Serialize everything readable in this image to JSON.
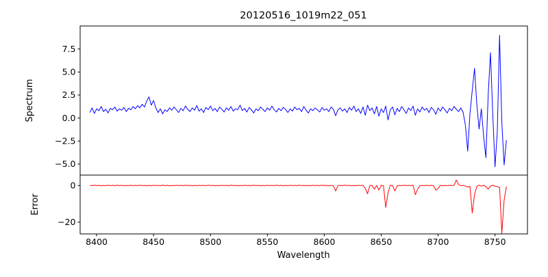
{
  "figure": {
    "title": "20120516_1019m22_051",
    "xlabel": "Wavelength",
    "background": "#ffffff",
    "axis_color": "#000000"
  },
  "chart_data": [
    {
      "type": "line",
      "series_name": "spectrum",
      "title": "20120516_1019m22_051",
      "ylabel": "Spectrum",
      "color": "#0000ff",
      "grid": false,
      "legend": "none",
      "x_start": 8394,
      "x_step": 2,
      "xlim": [
        8385.5,
        8778.5
      ],
      "ylim": [
        -6.2,
        10.0
      ],
      "yticks": [
        {
          "value": 7.5,
          "label": "7.5"
        },
        {
          "value": 5.0,
          "label": "5.0"
        },
        {
          "value": 2.5,
          "label": "2.5"
        },
        {
          "value": 0.0,
          "label": "0.0"
        },
        {
          "value": -2.5,
          "label": "−2.5"
        },
        {
          "value": -5.0,
          "label": "−5.0"
        }
      ],
      "values": [
        0.6,
        1.1,
        0.5,
        1.0,
        0.8,
        1.25,
        0.7,
        0.95,
        0.55,
        1.05,
        0.9,
        1.2,
        0.75,
        1.0,
        0.85,
        1.15,
        0.7,
        1.05,
        0.9,
        1.25,
        1.0,
        1.35,
        1.1,
        1.5,
        1.2,
        1.85,
        2.3,
        1.4,
        1.9,
        1.1,
        0.6,
        1.0,
        0.45,
        0.9,
        0.7,
        1.1,
        0.85,
        1.2,
        0.9,
        0.6,
        1.05,
        0.8,
        1.3,
        0.95,
        0.7,
        1.1,
        0.85,
        1.35,
        0.75,
        1.0,
        0.6,
        1.15,
        0.9,
        1.3,
        0.8,
        1.05,
        0.7,
        1.2,
        0.95,
        0.65,
        1.1,
        0.85,
        1.25,
        0.75,
        1.0,
        0.9,
        1.4,
        0.8,
        1.05,
        0.65,
        1.15,
        0.9,
        0.55,
        1.0,
        0.8,
        1.2,
        0.95,
        0.7,
        1.1,
        0.85,
        1.3,
        0.9,
        0.65,
        1.05,
        0.8,
        1.15,
        0.95,
        0.6,
        1.0,
        0.75,
        1.2,
        0.9,
        1.05,
        0.7,
        1.25,
        0.85,
        0.55,
        1.0,
        0.8,
        1.1,
        0.9,
        0.65,
        1.15,
        0.85,
        1.0,
        0.7,
        1.2,
        0.95,
        0.25,
        0.9,
        1.1,
        0.75,
        1.0,
        0.6,
        1.15,
        0.85,
        1.3,
        0.7,
        1.0,
        0.5,
        1.2,
        0.3,
        1.4,
        0.8,
        1.1,
        0.45,
        1.25,
        0.2,
        1.0,
        0.6,
        1.3,
        -0.2,
        0.9,
        1.2,
        0.35,
        1.05,
        0.7,
        1.25,
        0.9,
        0.5,
        1.1,
        0.8,
        1.3,
        0.3,
        1.0,
        0.65,
        1.2,
        0.85,
        1.05,
        0.6,
        1.15,
        0.9,
        0.4,
        1.1,
        0.75,
        1.2,
        0.9,
        0.55,
        1.05,
        0.8,
        1.25,
        0.95,
        0.7,
        1.1,
        0.6,
        -0.8,
        -3.6,
        0.5,
        3.0,
        5.4,
        1.5,
        -1.2,
        1.0,
        -2.0,
        -4.3,
        2.5,
        7.1,
        0.5,
        -5.3,
        -1.5,
        9.0,
        -0.5,
        -5.1,
        -2.4
      ]
    },
    {
      "type": "line",
      "series_name": "error",
      "ylabel": "Error",
      "xlabel": "Wavelength",
      "color": "#ff0000",
      "grid": false,
      "legend": "none",
      "x_start": 8394,
      "x_step": 2,
      "xlim": [
        8385.5,
        8778.5
      ],
      "ylim": [
        -26.4,
        5.7
      ],
      "xticks": [
        {
          "value": 8400,
          "label": "8400"
        },
        {
          "value": 8450,
          "label": "8450"
        },
        {
          "value": 8500,
          "label": "8500"
        },
        {
          "value": 8550,
          "label": "8550"
        },
        {
          "value": 8600,
          "label": "8600"
        },
        {
          "value": 8650,
          "label": "8650"
        },
        {
          "value": 8700,
          "label": "8700"
        },
        {
          "value": 8750,
          "label": "8750"
        }
      ],
      "yticks": [
        {
          "value": 0,
          "label": "0"
        },
        {
          "value": -20,
          "label": "−20"
        }
      ],
      "values": [
        0.1,
        -0.1,
        0.2,
        -0.05,
        0.1,
        -0.15,
        0.05,
        -0.1,
        0.15,
        -0.05,
        0.1,
        -0.1,
        0.2,
        -0.05,
        0.1,
        -0.15,
        0.05,
        -0.1,
        0.15,
        -0.05,
        0.1,
        -0.1,
        0.2,
        -0.05,
        0.1,
        -0.15,
        0.05,
        -0.1,
        0.15,
        -0.05,
        0.1,
        -0.1,
        0.2,
        -0.05,
        0.1,
        -0.15,
        0.05,
        -0.1,
        0.15,
        -0.05,
        0.1,
        -0.1,
        0.2,
        -0.05,
        0.1,
        -0.15,
        0.05,
        -0.1,
        0.15,
        -0.05,
        0.1,
        -0.1,
        0.2,
        -0.05,
        0.1,
        -0.15,
        0.05,
        -0.1,
        0.15,
        -0.05,
        0.1,
        -0.1,
        0.2,
        -0.05,
        0.1,
        -0.15,
        0.05,
        -0.1,
        0.15,
        -0.05,
        0.1,
        -0.1,
        0.2,
        -0.05,
        0.1,
        -0.15,
        0.05,
        -0.1,
        0.15,
        -0.05,
        0.1,
        -0.1,
        0.2,
        -0.05,
        0.1,
        -0.15,
        0.05,
        -0.1,
        0.15,
        -0.05,
        0.1,
        -0.1,
        0.2,
        -0.05,
        0.1,
        -0.15,
        0.05,
        -0.1,
        0.15,
        -0.05,
        0.1,
        -0.1,
        0.2,
        -0.05,
        0.1,
        -0.15,
        0.05,
        -0.1,
        -3.0,
        -0.05,
        0.1,
        -0.1,
        0.2,
        -0.05,
        0.1,
        -0.15,
        0.05,
        -0.1,
        0.15,
        -0.05,
        0.1,
        -1.5,
        -4.5,
        -0.05,
        0.1,
        -2.0,
        0.05,
        -2.5,
        0.15,
        -0.05,
        -12.0,
        -4.0,
        0.2,
        -0.05,
        -3.0,
        -0.15,
        0.05,
        -0.1,
        0.15,
        -0.05,
        0.1,
        -0.1,
        0.2,
        -5.0,
        -2.0,
        -0.15,
        0.05,
        -0.1,
        0.15,
        -0.05,
        0.1,
        -0.1,
        -2.5,
        -1.5,
        0.1,
        -0.15,
        0.05,
        -0.1,
        0.15,
        -0.05,
        0.1,
        3.0,
        0.5,
        -0.1,
        0.1,
        -0.3,
        -0.8,
        -0.4,
        -15.0,
        -5.0,
        -0.5,
        0.2,
        -0.3,
        0.1,
        -0.5,
        -2.0,
        -0.3,
        0.2,
        -0.4,
        -0.6,
        -1.0,
        -26.0,
        -8.0,
        -0.5
      ]
    }
  ]
}
